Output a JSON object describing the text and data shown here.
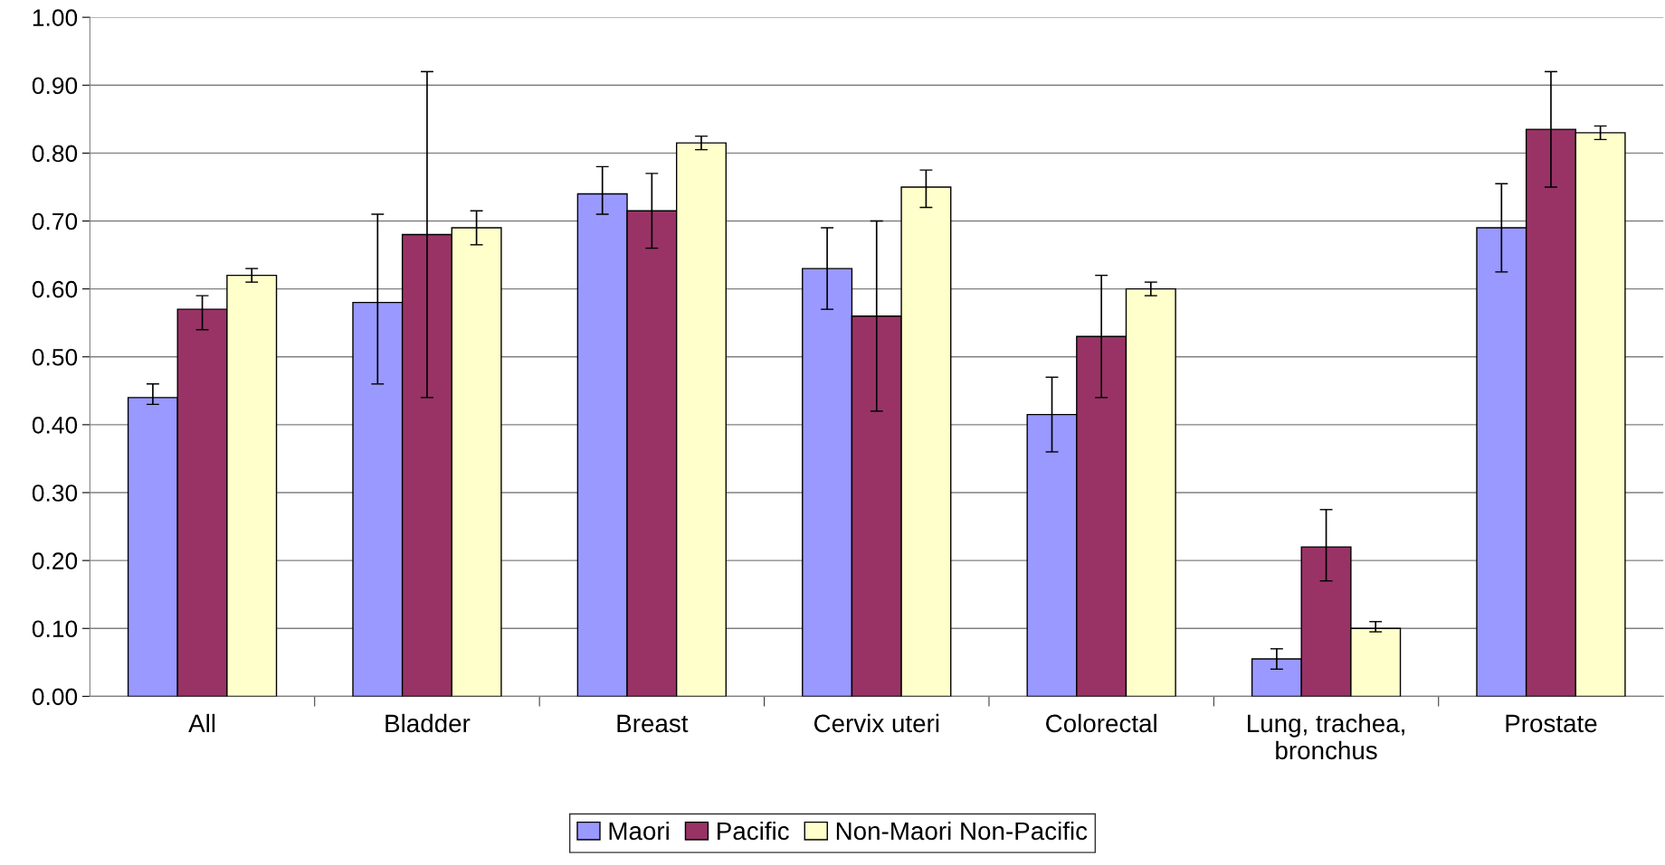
{
  "chart_data": {
    "type": "bar",
    "categories": [
      "All",
      "Bladder",
      "Breast",
      "Cervix uteri",
      "Colorectal",
      "Lung, trachea, bronchus",
      "Prostate"
    ],
    "series": [
      {
        "name": "Maori",
        "color": "#9999ff",
        "values": [
          0.44,
          0.58,
          0.74,
          0.63,
          0.415,
          0.055,
          0.69
        ],
        "errors": [
          [
            0.43,
            0.46
          ],
          [
            0.46,
            0.71
          ],
          [
            0.71,
            0.78
          ],
          [
            0.57,
            0.69
          ],
          [
            0.36,
            0.47
          ],
          [
            0.04,
            0.07
          ],
          [
            0.625,
            0.755
          ]
        ]
      },
      {
        "name": "Pacific",
        "color": "#993366",
        "values": [
          0.57,
          0.68,
          0.715,
          0.56,
          0.53,
          0.22,
          0.835
        ],
        "errors": [
          [
            0.54,
            0.59
          ],
          [
            0.44,
            0.92
          ],
          [
            0.66,
            0.77
          ],
          [
            0.42,
            0.7
          ],
          [
            0.44,
            0.62
          ],
          [
            0.17,
            0.275
          ],
          [
            0.75,
            0.92
          ]
        ]
      },
      {
        "name": "Non-Maori Non-Pacific",
        "color": "#ffffcc",
        "values": [
          0.62,
          0.69,
          0.815,
          0.75,
          0.6,
          0.1,
          0.83
        ],
        "errors": [
          [
            0.61,
            0.63
          ],
          [
            0.665,
            0.715
          ],
          [
            0.805,
            0.825
          ],
          [
            0.72,
            0.775
          ],
          [
            0.59,
            0.61
          ],
          [
            0.095,
            0.11
          ],
          [
            0.82,
            0.84
          ]
        ]
      }
    ],
    "ylim": [
      0,
      1
    ],
    "yticks": [
      {
        "value": 0,
        "label": "0.00"
      },
      {
        "value": 0.1,
        "label": "0.10"
      },
      {
        "value": 0.2,
        "label": "0.20"
      },
      {
        "value": 0.3,
        "label": "0.30"
      },
      {
        "value": 0.4,
        "label": "0.40"
      },
      {
        "value": 0.5,
        "label": "0.50"
      },
      {
        "value": 0.6,
        "label": "0.60"
      },
      {
        "value": 0.7,
        "label": "0.70"
      },
      {
        "value": 0.8,
        "label": "0.80"
      },
      {
        "value": 0.9,
        "label": "0.90"
      },
      {
        "value": 1.0,
        "label": "1.00"
      }
    ],
    "grid": "y",
    "legend": "bottom"
  }
}
